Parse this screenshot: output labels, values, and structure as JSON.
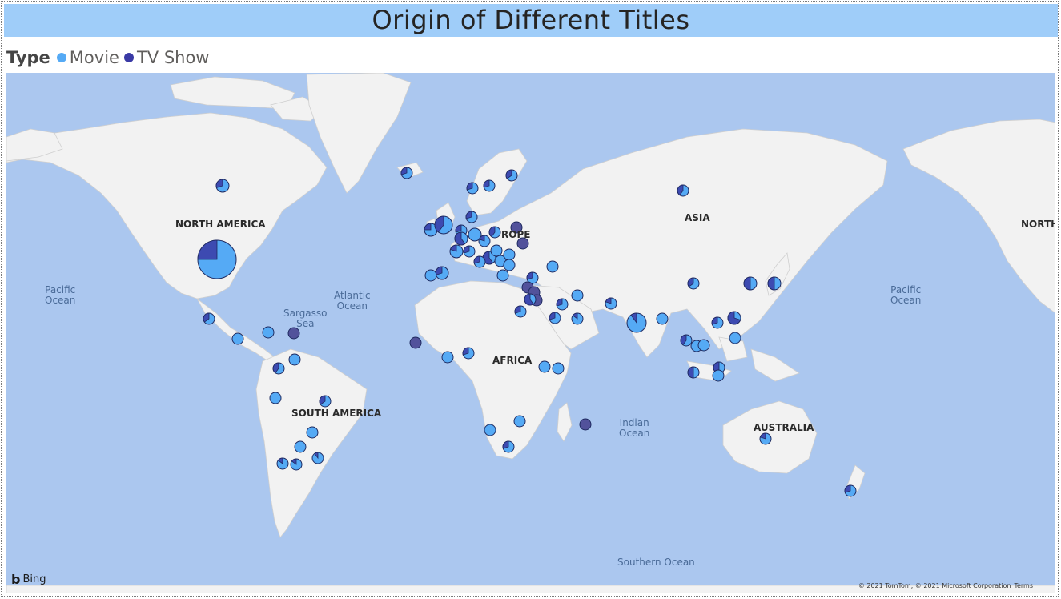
{
  "title": "Origin of Different Titles",
  "legend": {
    "title": "Type",
    "items": [
      {
        "label": "Movie",
        "color": "#55aaf5"
      },
      {
        "label": "TV Show",
        "color": "#3a3aa5"
      }
    ]
  },
  "map": {
    "provider": "Bing",
    "copyright": "© 2021 TomTom, © 2021 Microsoft Corporation",
    "terms": "Terms",
    "regions": {
      "north_america": "NORTH AMERICA",
      "north_right": "NORTH",
      "europe": "ROPE",
      "asia": "ASIA",
      "africa": "AFRICA",
      "south_america": "SOUTH AMERICA",
      "australia": "AUSTRALIA"
    },
    "oceans": {
      "pacific_left": "Pacific\nOcean",
      "atlantic": "Atlantic\nOcean",
      "sargasso": "Sargasso\nSea",
      "indian": "Indian\nOcean",
      "pacific_right": "Pacific\nOcean",
      "southern": "Southern Ocean"
    },
    "colors": {
      "ocean": "#abc7ef",
      "land": "#f2f2f2",
      "movie": "#55aaf5",
      "tv": "#3a3aa5",
      "tv_solid": "#52529b"
    }
  }
}
